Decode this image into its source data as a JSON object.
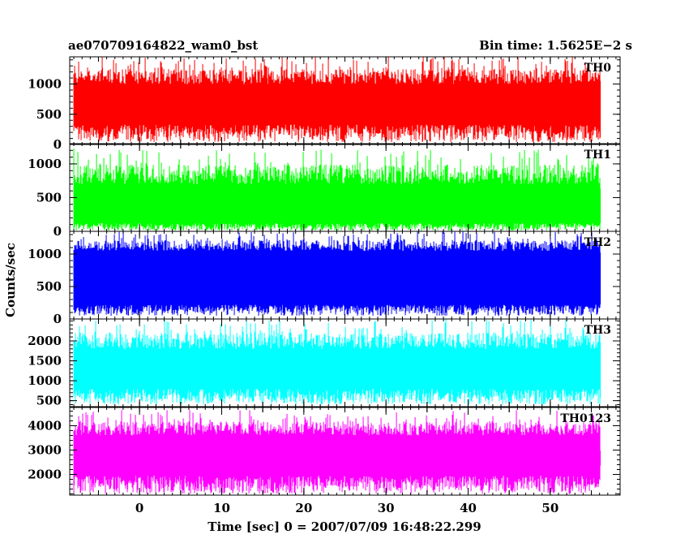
{
  "header": {
    "left_title": "ae070709164822_wam0_bst",
    "right_title": "Bin time: 1.5625E−2 s"
  },
  "chart_data": {
    "type": "line",
    "title": "ae070709164822_wam0_bst",
    "subtitle": "Bin time: 1.5625E−2 s",
    "xlabel": "Time [sec] 0 = 2007/07/09 16:48:22.299",
    "ylabel": "Counts/sec",
    "xlim": [
      -8.5,
      58.5
    ],
    "data_range": [
      -8.0,
      56.0
    ],
    "x_ticks": [
      0,
      10,
      20,
      30,
      40,
      50
    ],
    "grid": false,
    "panels": [
      {
        "name": "TH0",
        "color": "#ff0000",
        "ylim": [
          0,
          1450
        ],
        "y_ticks": [
          0,
          500,
          1000
        ],
        "mean": 640,
        "base_min": 40,
        "base_max": 330,
        "peak_min": 1000,
        "peak_max": 1450
      },
      {
        "name": "TH1",
        "color": "#00ff00",
        "ylim": [
          0,
          1300
        ],
        "y_ticks": [
          0,
          500,
          1000
        ],
        "mean": 420,
        "base_min": 10,
        "base_max": 120,
        "peak_min": 700,
        "peak_max": 1230
      },
      {
        "name": "TH2",
        "color": "#0000ff",
        "ylim": [
          0,
          1350
        ],
        "y_ticks": [
          0,
          500,
          1000
        ],
        "mean": 640,
        "base_min": 50,
        "base_max": 220,
        "peak_min": 1050,
        "peak_max": 1350
      },
      {
        "name": "TH3",
        "color": "#00ffff",
        "ylim": [
          350,
          2550
        ],
        "y_ticks": [
          500,
          1000,
          1500,
          2000
        ],
        "mean": 1340,
        "base_min": 400,
        "base_max": 800,
        "peak_min": 1800,
        "peak_max": 2550
      },
      {
        "name": "TH0123",
        "color": "#ff00ff",
        "ylim": [
          1150,
          4750
        ],
        "y_ticks": [
          2000,
          3000,
          4000
        ],
        "mean": 2830,
        "base_min": 1200,
        "base_max": 1950,
        "peak_min": 3600,
        "peak_max": 4650
      }
    ]
  }
}
